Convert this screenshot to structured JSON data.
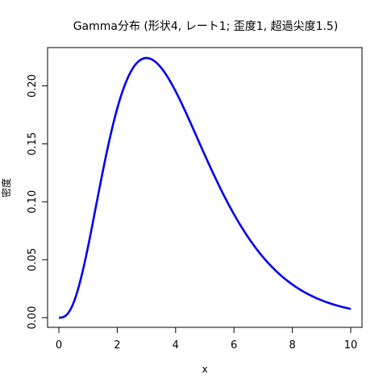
{
  "chart_data": {
    "type": "line",
    "title": "Gamma分布 (形状4, レート1; 歪度1, 超過尖度1.5)",
    "xlabel": "x",
    "ylabel": "密度",
    "xlim": [
      0,
      10
    ],
    "ylim": [
      0,
      0.224
    ],
    "x_ticks": [
      0,
      2,
      4,
      6,
      8,
      10
    ],
    "y_ticks": [
      0.0,
      0.05,
      0.1,
      0.15,
      0.2
    ],
    "x_tick_labels": [
      "0",
      "2",
      "4",
      "6",
      "8",
      "10"
    ],
    "y_tick_labels": [
      "0.00",
      "0.05",
      "0.10",
      "0.15",
      "0.20"
    ],
    "grid": false,
    "series": [
      {
        "color": "#0000ee",
        "shape": 4,
        "rate": 1,
        "x": [
          0,
          0.5,
          1,
          1.5,
          2,
          2.5,
          3,
          3.5,
          4,
          4.5,
          5,
          5.5,
          6,
          6.5,
          7,
          7.5,
          8,
          8.5,
          9,
          9.5,
          10
        ],
        "y": [
          0,
          0.0126,
          0.0613,
          0.1255,
          0.1804,
          0.2138,
          0.224,
          0.2158,
          0.1954,
          0.1687,
          0.1404,
          0.1133,
          0.0892,
          0.0688,
          0.0521,
          0.0389,
          0.0286,
          0.0208,
          0.015,
          0.0107,
          0.0076
        ]
      }
    ]
  }
}
